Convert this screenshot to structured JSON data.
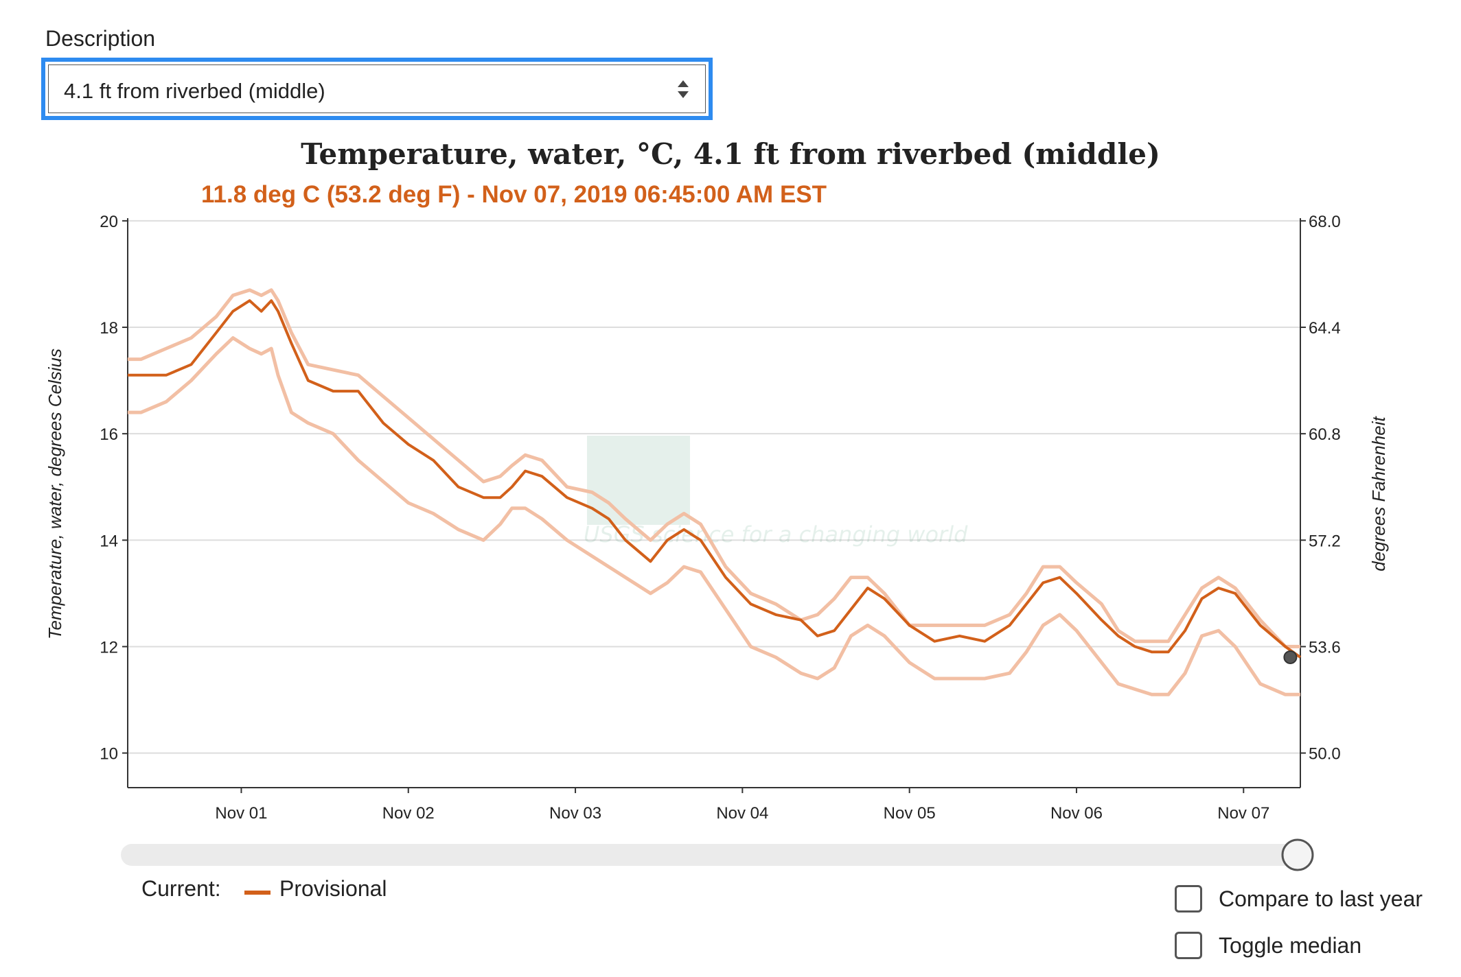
{
  "description": {
    "label": "Description",
    "selected": "4.1 ft from riverbed (middle)"
  },
  "chart_data": {
    "type": "line",
    "title": "Temperature, water, °C, 4.1 ft from riverbed (middle)",
    "subtitle": "11.8 deg C (53.2 deg F) - Nov 07, 2019 06:45:00 AM EST",
    "ylabel": "Temperature, water, degrees Celsius",
    "y2label": "degrees Fahrenheit",
    "ylim": [
      9.35,
      20.05
    ],
    "yticks": [
      "10",
      "12",
      "14",
      "16",
      "18",
      "20"
    ],
    "ytick_values": [
      10,
      12,
      14,
      16,
      18,
      20
    ],
    "y2ticks": [
      "50.0",
      "53.6",
      "57.2",
      "60.8",
      "64.4",
      "68.0"
    ],
    "xticks": [
      "Nov 01",
      "Nov 02",
      "Nov 03",
      "Nov 04",
      "Nov 05",
      "Nov 06",
      "Nov 07"
    ],
    "xlim": [
      -0.68,
      6.34
    ],
    "grid": true,
    "watermark": "USGS science for a changing world",
    "series": [
      {
        "name": "Provisional",
        "color": "#d2601a",
        "x": [
          -0.68,
          -0.6,
          -0.45,
          -0.3,
          -0.15,
          -0.05,
          0.05,
          0.12,
          0.18,
          0.22,
          0.3,
          0.4,
          0.55,
          0.7,
          0.85,
          1.0,
          1.15,
          1.3,
          1.45,
          1.55,
          1.62,
          1.7,
          1.8,
          1.95,
          2.1,
          2.2,
          2.3,
          2.45,
          2.55,
          2.65,
          2.75,
          2.9,
          3.05,
          3.2,
          3.35,
          3.45,
          3.55,
          3.65,
          3.75,
          3.85,
          4.0,
          4.15,
          4.3,
          4.45,
          4.6,
          4.7,
          4.8,
          4.9,
          5.0,
          5.15,
          5.25,
          5.35,
          5.45,
          5.55,
          5.65,
          5.75,
          5.85,
          5.95,
          6.1,
          6.25,
          6.34
        ],
        "y": [
          17.1,
          17.1,
          17.1,
          17.3,
          17.9,
          18.3,
          18.5,
          18.3,
          18.5,
          18.3,
          17.7,
          17.0,
          16.8,
          16.8,
          16.2,
          15.8,
          15.5,
          15.0,
          14.8,
          14.8,
          15.0,
          15.3,
          15.2,
          14.8,
          14.6,
          14.4,
          14.0,
          13.6,
          14.0,
          14.2,
          14.0,
          13.3,
          12.8,
          12.6,
          12.5,
          12.2,
          12.3,
          12.7,
          13.1,
          12.9,
          12.4,
          12.1,
          12.2,
          12.1,
          12.4,
          12.8,
          13.2,
          13.3,
          13.0,
          12.5,
          12.2,
          12.0,
          11.9,
          11.9,
          12.3,
          12.9,
          13.1,
          13.0,
          12.4,
          12.0,
          11.8
        ],
        "lower": [
          16.4,
          16.4,
          16.6,
          17.0,
          17.5,
          17.8,
          17.6,
          17.5,
          17.6,
          17.1,
          16.4,
          16.2,
          16.0,
          15.5,
          15.1,
          14.7,
          14.5,
          14.2,
          14.0,
          14.3,
          14.6,
          14.6,
          14.4,
          14.0,
          13.7,
          13.5,
          13.3,
          13.0,
          13.2,
          13.5,
          13.4,
          12.7,
          12.0,
          11.8,
          11.5,
          11.4,
          11.6,
          12.2,
          12.4,
          12.2,
          11.7,
          11.4,
          11.4,
          11.4,
          11.5,
          11.9,
          12.4,
          12.6,
          12.3,
          11.7,
          11.3,
          11.2,
          11.1,
          11.1,
          11.5,
          12.2,
          12.3,
          12.0,
          11.3,
          11.1,
          11.1
        ],
        "upper": [
          17.4,
          17.4,
          17.6,
          17.8,
          18.2,
          18.6,
          18.7,
          18.6,
          18.7,
          18.5,
          17.9,
          17.3,
          17.2,
          17.1,
          16.7,
          16.3,
          15.9,
          15.5,
          15.1,
          15.2,
          15.4,
          15.6,
          15.5,
          15.0,
          14.9,
          14.7,
          14.4,
          14.0,
          14.3,
          14.5,
          14.3,
          13.5,
          13.0,
          12.8,
          12.5,
          12.6,
          12.9,
          13.3,
          13.3,
          13.0,
          12.4,
          12.4,
          12.4,
          12.4,
          12.6,
          13.0,
          13.5,
          13.5,
          13.2,
          12.8,
          12.3,
          12.1,
          12.1,
          12.1,
          12.6,
          13.1,
          13.3,
          13.1,
          12.5,
          12.0,
          12.0
        ]
      }
    ],
    "current_point": {
      "x": 6.28,
      "y": 11.8
    }
  },
  "legend": {
    "label": "Current:",
    "series_label": "Provisional"
  },
  "options": {
    "compare_label": "Compare to last year",
    "median_label": "Toggle median"
  },
  "colors": {
    "accent": "#d2601a",
    "band": "#f2bfa4",
    "focus": "#2e8bf0"
  }
}
